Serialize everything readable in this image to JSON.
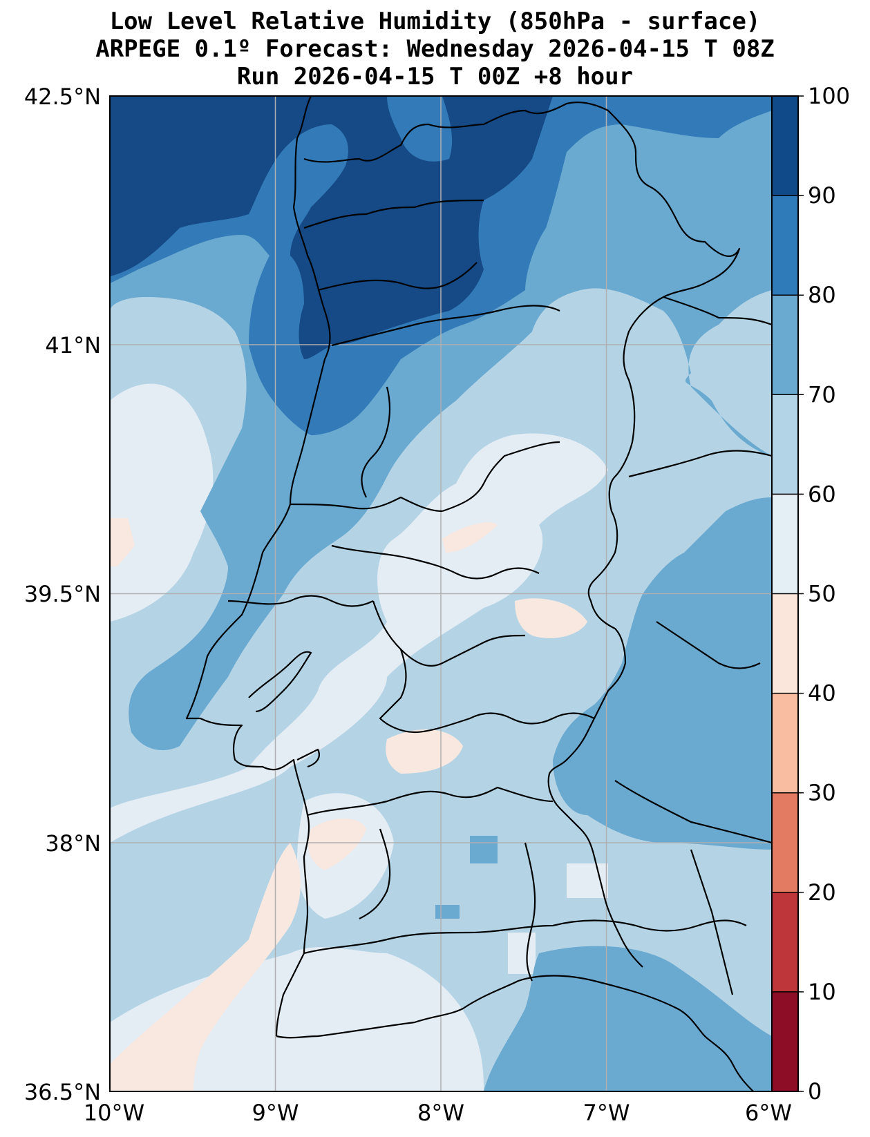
{
  "title": {
    "line1": "Low Level Relative Humidity (850hPa - surface)",
    "line2": "ARPEGE 0.1º Forecast: Wednesday 2026-04-15 T 08Z",
    "line3": "Run 2026-04-15 T 00Z +8 hour"
  },
  "map": {
    "region": "Portugal (mainland)",
    "lon_range": [
      -10,
      -6
    ],
    "lat_range": [
      36.5,
      42.5
    ],
    "x_ticks": [
      "10°W",
      "9°W",
      "8°W",
      "7°W",
      "6°W"
    ],
    "y_ticks": [
      "42.5°N",
      "41°N",
      "39.5°N",
      "38°N",
      "36.5°N"
    ]
  },
  "colorbar": {
    "levels": [
      "0",
      "10",
      "20",
      "30",
      "40",
      "50",
      "60",
      "70",
      "80",
      "90",
      "100"
    ],
    "colors": [
      "#8c0d25",
      "#bf363a",
      "#e27b62",
      "#f9bda2",
      "#fbe6dc",
      "#e4eef5",
      "#b3d4e7",
      "#6aa9d0",
      "#2f7ab9",
      "#104a89"
    ]
  },
  "colors": {
    "rh_90_100": "#164a86",
    "rh_80_90": "#327bb8",
    "rh_70_80": "#6aa9d0",
    "rh_60_70": "#b4d4e6",
    "rh_50_60": "#e4ecf4",
    "rh_40_50": "#f9e8e0",
    "border": "#000000",
    "grid": "#b0b0b0"
  }
}
